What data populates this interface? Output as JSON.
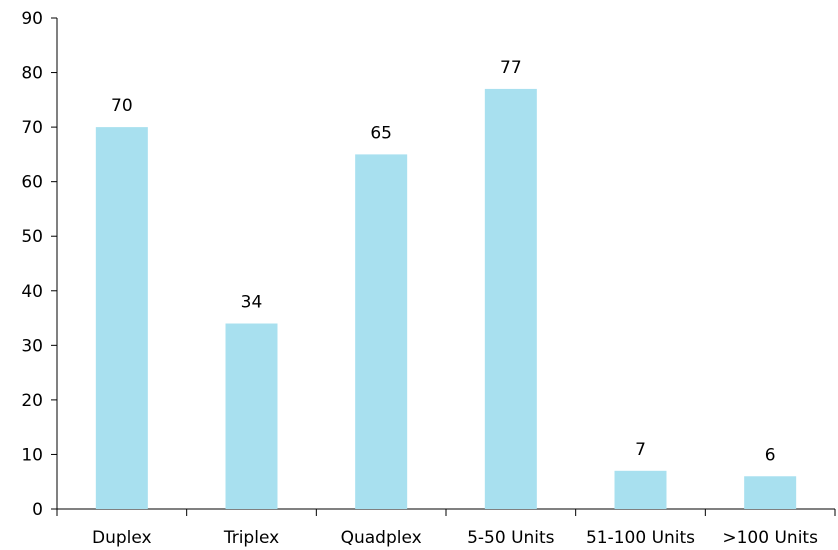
{
  "chart_data": {
    "type": "bar",
    "categories": [
      "Duplex",
      "Triplex",
      "Quadplex",
      "5-50 Units",
      "51-100 Units",
      ">100 Units"
    ],
    "values": [
      70,
      34,
      65,
      77,
      7,
      6
    ],
    "data_labels": [
      "70",
      "34",
      "65",
      "77",
      "7",
      "6"
    ],
    "yticks": [
      "0",
      "10",
      "20",
      "30",
      "40",
      "50",
      "60",
      "70",
      "80",
      "90"
    ],
    "ylim": [
      0,
      90
    ],
    "title": "",
    "xlabel": "",
    "ylabel": "",
    "grid": false,
    "legend": "none",
    "bar_color": "#a8e0ef"
  }
}
